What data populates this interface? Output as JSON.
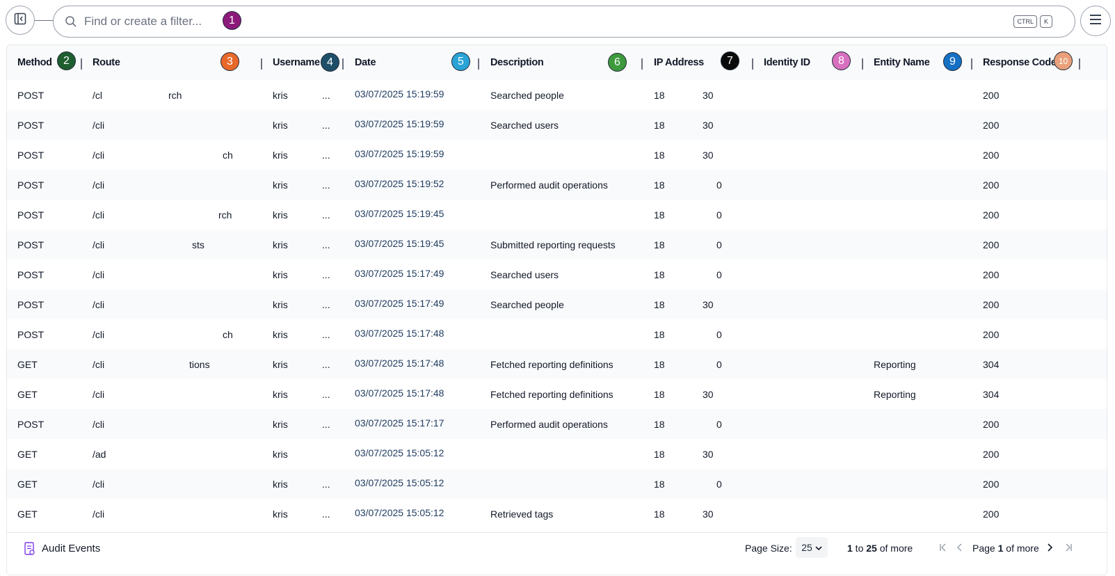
{
  "search": {
    "placeholder": "Find or create a filter..."
  },
  "shortcut": {
    "key1": "CTRL",
    "key2": "K"
  },
  "badges": [
    "1",
    "2",
    "3",
    "4",
    "5",
    "6",
    "7",
    "8",
    "9",
    "10"
  ],
  "badge_colors": [
    "#8b1a7a",
    "#1e5e2f",
    "#e8682a",
    "#1f4e68",
    "#2aa3d6",
    "#3d9a3d",
    "#0a0a0a",
    "#d86fbf",
    "#1570c4",
    "#e9a07a"
  ],
  "columns": {
    "method": "Method",
    "route": "Route",
    "username": "Username",
    "date": "Date",
    "description": "Description",
    "ip": "IP Address",
    "identity": "Identity ID",
    "entity": "Entity Name",
    "response": "Response Code"
  },
  "rows": [
    {
      "method": "POST",
      "route": "/cl",
      "route_end": "rch",
      "username": "kris",
      "user_end": "...",
      "date": "03/07/2025 15:19:59",
      "description": "Searched people",
      "ip": "18",
      "ip_end": "30",
      "entity": "",
      "response": "200"
    },
    {
      "method": "POST",
      "route": "/cli",
      "route_end": "",
      "username": "kris",
      "user_end": "...",
      "date": "03/07/2025 15:19:59",
      "description": "Searched users",
      "ip": "18",
      "ip_end": "30",
      "entity": "",
      "response": "200"
    },
    {
      "method": "POST",
      "route": "/cli",
      "route_end": "ch",
      "username": "kris",
      "user_end": "...",
      "date": "03/07/2025 15:19:59",
      "description": "",
      "ip": "18",
      "ip_end": "30",
      "entity": "",
      "response": "200"
    },
    {
      "method": "POST",
      "route": "/cli",
      "route_end": "",
      "username": "kris",
      "user_end": "...",
      "date": "03/07/2025 15:19:52",
      "description": "Performed audit operations",
      "ip": "18",
      "ip_end": "0",
      "entity": "",
      "response": "200"
    },
    {
      "method": "POST",
      "route": "/cli",
      "route_end": "rch",
      "username": "kris",
      "user_end": "...",
      "date": "03/07/2025 15:19:45",
      "description": "",
      "ip": "18",
      "ip_end": "0",
      "entity": "",
      "response": "200"
    },
    {
      "method": "POST",
      "route": "/cli",
      "route_end": "sts",
      "username": "kris",
      "user_end": "...",
      "date": "03/07/2025 15:19:45",
      "description": "Submitted reporting requests",
      "ip": "18",
      "ip_end": "0",
      "entity": "",
      "response": "200"
    },
    {
      "method": "POST",
      "route": "/cli",
      "route_end": "",
      "username": "kris",
      "user_end": "...",
      "date": "03/07/2025 15:17:49",
      "description": "Searched users",
      "ip": "18",
      "ip_end": "0",
      "entity": "",
      "response": "200"
    },
    {
      "method": "POST",
      "route": "/cli",
      "route_end": "",
      "username": "kris",
      "user_end": "...",
      "date": "03/07/2025 15:17:49",
      "description": "Searched people",
      "ip": "18",
      "ip_end": "30",
      "entity": "",
      "response": "200"
    },
    {
      "method": "POST",
      "route": "/cli",
      "route_end": "ch",
      "username": "kris",
      "user_end": "...",
      "date": "03/07/2025 15:17:48",
      "description": "",
      "ip": "18",
      "ip_end": "0",
      "entity": "",
      "response": "200"
    },
    {
      "method": "GET",
      "route": "/cli",
      "route_end": "tions",
      "username": "kris",
      "user_end": "...",
      "date": "03/07/2025 15:17:48",
      "description": "Fetched reporting definitions",
      "ip": "18",
      "ip_end": "0",
      "entity": "Reporting",
      "response": "304"
    },
    {
      "method": "GET",
      "route": "/cli",
      "route_end": "",
      "username": "kris",
      "user_end": "...",
      "date": "03/07/2025 15:17:48",
      "description": "Fetched reporting definitions",
      "ip": "18",
      "ip_end": "30",
      "entity": "Reporting",
      "response": "304"
    },
    {
      "method": "POST",
      "route": "/cli",
      "route_end": "",
      "username": "kris",
      "user_end": "...",
      "date": "03/07/2025 15:17:17",
      "description": "Performed audit operations",
      "ip": "18",
      "ip_end": "0",
      "entity": "",
      "response": "200"
    },
    {
      "method": "GET",
      "route": "/ad",
      "route_end": "",
      "username": "kris",
      "user_end": "",
      "date": "03/07/2025 15:05:12",
      "description": "",
      "ip": "18",
      "ip_end": "30",
      "entity": "",
      "response": "200"
    },
    {
      "method": "GET",
      "route": "/cli",
      "route_end": "",
      "username": "kris",
      "user_end": "...",
      "date": "03/07/2025 15:05:12",
      "description": "",
      "ip": "18",
      "ip_end": "0",
      "entity": "",
      "response": "200"
    },
    {
      "method": "GET",
      "route": "/cli",
      "route_end": "",
      "username": "kris",
      "user_end": "...",
      "date": "03/07/2025 15:05:12",
      "description": "Retrieved tags",
      "ip": "18",
      "ip_end": "30",
      "entity": "",
      "response": "200"
    }
  ],
  "footer": {
    "title": "Audit Events",
    "page_size_label": "Page Size:",
    "page_size": "25",
    "range_from": "1",
    "range_to_word": " to ",
    "range_to": "25",
    "range_more": " of more",
    "page_word": "Page ",
    "page_num": "1",
    "page_more": " of more"
  }
}
